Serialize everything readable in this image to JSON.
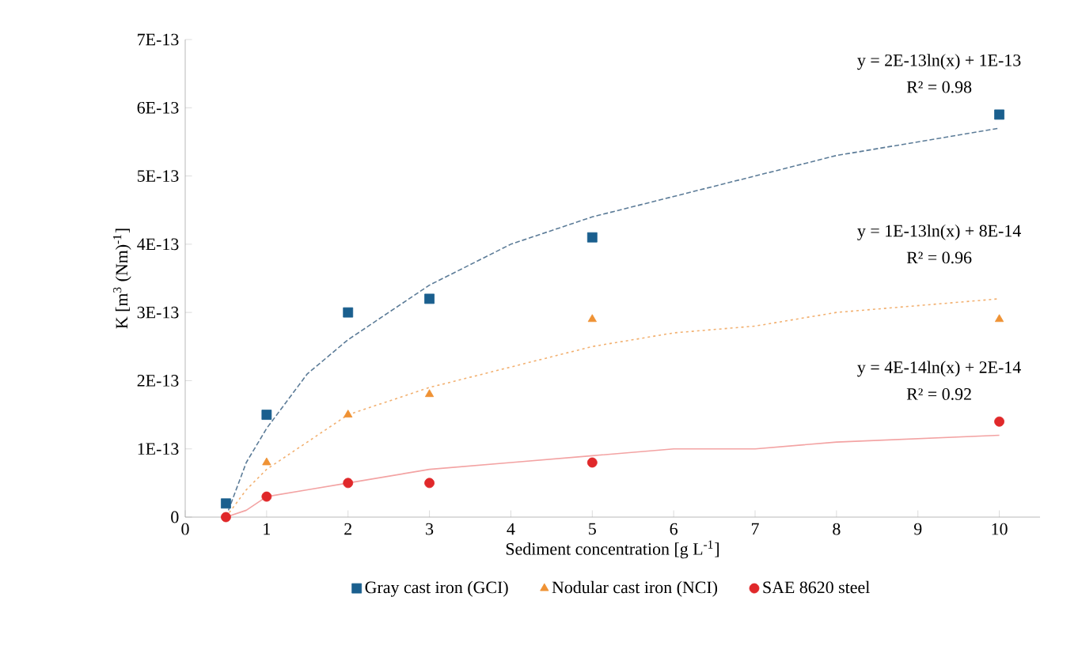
{
  "chart_data": {
    "type": "scatter",
    "xlabel": "Sediment concentration  [g L$^{-1}$]",
    "ylabel": "K [m$^{3}$ (Nm)$^{-1}$]",
    "xlim": [
      0,
      10.5
    ],
    "ylim": [
      0,
      7e-13
    ],
    "xticks": [
      0,
      1,
      2,
      3,
      4,
      5,
      6,
      7,
      8,
      9,
      10
    ],
    "yticks": [
      0,
      {
        "value": 1e-13,
        "label": "1E-13"
      },
      {
        "value": 2e-13,
        "label": "2E-13"
      },
      {
        "value": 3e-13,
        "label": "3E-13"
      },
      {
        "value": 4e-13,
        "label": "4E-13"
      },
      {
        "value": 5e-13,
        "label": "5E-13"
      },
      {
        "value": 6e-13,
        "label": "6E-13"
      },
      {
        "value": 7e-13,
        "label": "7E-13"
      }
    ],
    "grid": false,
    "legend": "bottom",
    "x": [
      0.5,
      1,
      2,
      3,
      5,
      10
    ],
    "series": [
      {
        "name": "Gray cast iron (GCI)",
        "color": "#1a5f8e",
        "marker": "square",
        "values": [
          2e-14,
          1.5e-13,
          3e-13,
          3.2e-13,
          4.1e-13,
          5.9e-13
        ]
      },
      {
        "name": "Nodular cast iron (NCI)",
        "color": "#ef9234",
        "marker": "triangle",
        "values": [
          null,
          8e-14,
          1.5e-13,
          1.8e-13,
          2.9e-13,
          2.9e-13
        ]
      },
      {
        "name": "SAE 8620 steel",
        "color": "#e0282a",
        "marker": "circle",
        "values": [
          0,
          3e-14,
          5e-14,
          5e-14,
          8e-14,
          1.4e-13
        ]
      },
      {
        "type": "line",
        "color": "#5c7c98",
        "marker": "none",
        "line_style": "dashed",
        "x": [
          0.5,
          0.75,
          1,
          1.5,
          2,
          3,
          4,
          5,
          6,
          7,
          8,
          10
        ],
        "values": [
          0,
          8e-14,
          1.3e-13,
          2.1e-13,
          2.6e-13,
          3.4e-13,
          4e-13,
          4.4e-13,
          4.7e-13,
          5e-13,
          5.3e-13,
          5.7e-13
        ]
      },
      {
        "type": "line",
        "color": "#f2b070",
        "marker": "none",
        "line_style": "dotted",
        "x": [
          0.5,
          0.75,
          1,
          1.5,
          2,
          3,
          4,
          5,
          6,
          7,
          8,
          10
        ],
        "values": [
          0,
          4e-14,
          7e-14,
          1.1e-13,
          1.5e-13,
          1.9e-13,
          2.2e-13,
          2.5e-13,
          2.7e-13,
          2.8e-13,
          3e-13,
          3.2e-13
        ]
      },
      {
        "type": "line",
        "color": "#f3a3a3",
        "marker": "none",
        "line_style": "solid",
        "x": [
          0.5,
          0.75,
          1,
          1.5,
          2,
          3,
          4,
          5,
          6,
          7,
          8,
          10
        ],
        "values": [
          0,
          1e-14,
          3e-14,
          4e-14,
          5e-14,
          7e-14,
          8e-14,
          9e-14,
          1e-13,
          1e-13,
          1.1e-13,
          1.2e-13
        ]
      }
    ],
    "annotations": [
      "y = 2E-13ln(x) + 1E-13",
      "R² = 0.98",
      "y = 1E-13ln(x) + 8E-14",
      "R² = 0.96",
      "y = 4E-14ln(x) + 2E-14",
      "R² = 0.92"
    ]
  }
}
